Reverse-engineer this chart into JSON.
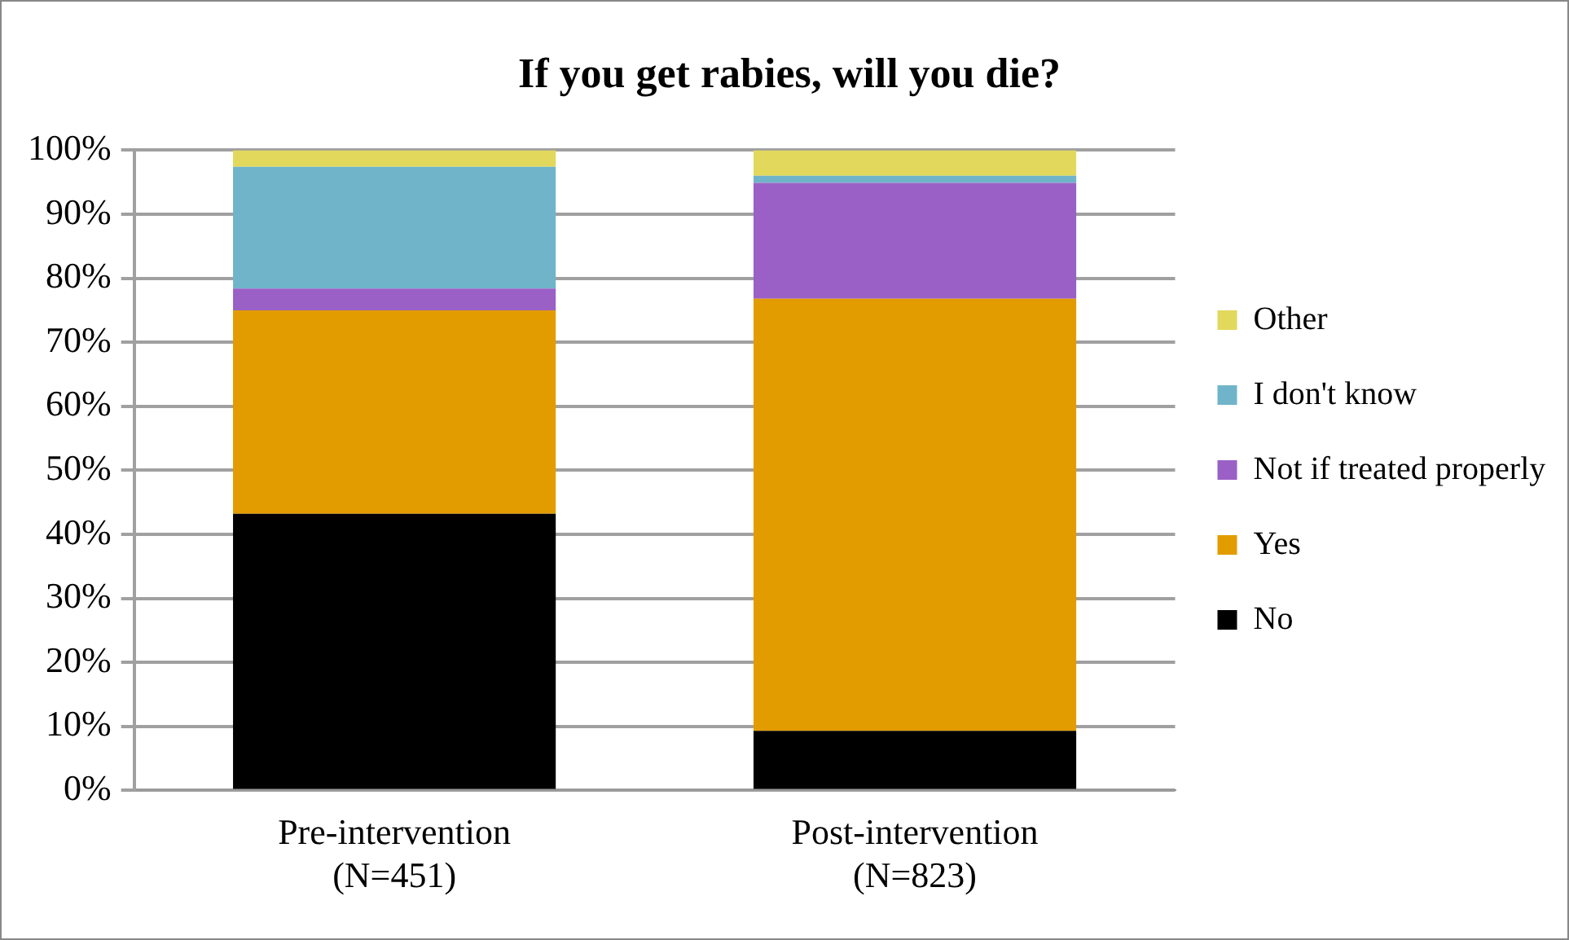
{
  "chart_data": {
    "type": "bar",
    "title": "If you get rabies, will you die?",
    "categories": [
      "Pre-intervention\n(N=451)",
      "Post-intervention\n(N=823)"
    ],
    "stacked": true,
    "series": [
      {
        "name": "No",
        "color": "#000000",
        "values": [
          43.2,
          9.3
        ]
      },
      {
        "name": "Yes",
        "color": "#e29c00",
        "values": [
          31.8,
          67.5
        ]
      },
      {
        "name": "Not if treated properly",
        "color": "#9a60c6",
        "values": [
          3.4,
          18.1
        ]
      },
      {
        "name": "I don't know",
        "color": "#70b4ca",
        "values": [
          19.0,
          1.1
        ]
      },
      {
        "name": "Other",
        "color": "#e2d85c",
        "values": [
          2.6,
          4.0
        ]
      }
    ],
    "ylim": [
      0,
      100
    ],
    "yticks": [
      {
        "value": 0,
        "label": "0%"
      },
      {
        "value": 10,
        "label": "10%"
      },
      {
        "value": 20,
        "label": "20%"
      },
      {
        "value": 30,
        "label": "30%"
      },
      {
        "value": 40,
        "label": "40%"
      },
      {
        "value": 50,
        "label": "50%"
      },
      {
        "value": 60,
        "label": "60%"
      },
      {
        "value": 70,
        "label": "70%"
      },
      {
        "value": 80,
        "label": "80%"
      },
      {
        "value": 90,
        "label": "90%"
      },
      {
        "value": 100,
        "label": "100%"
      }
    ],
    "grid": "y",
    "legend": "right"
  }
}
